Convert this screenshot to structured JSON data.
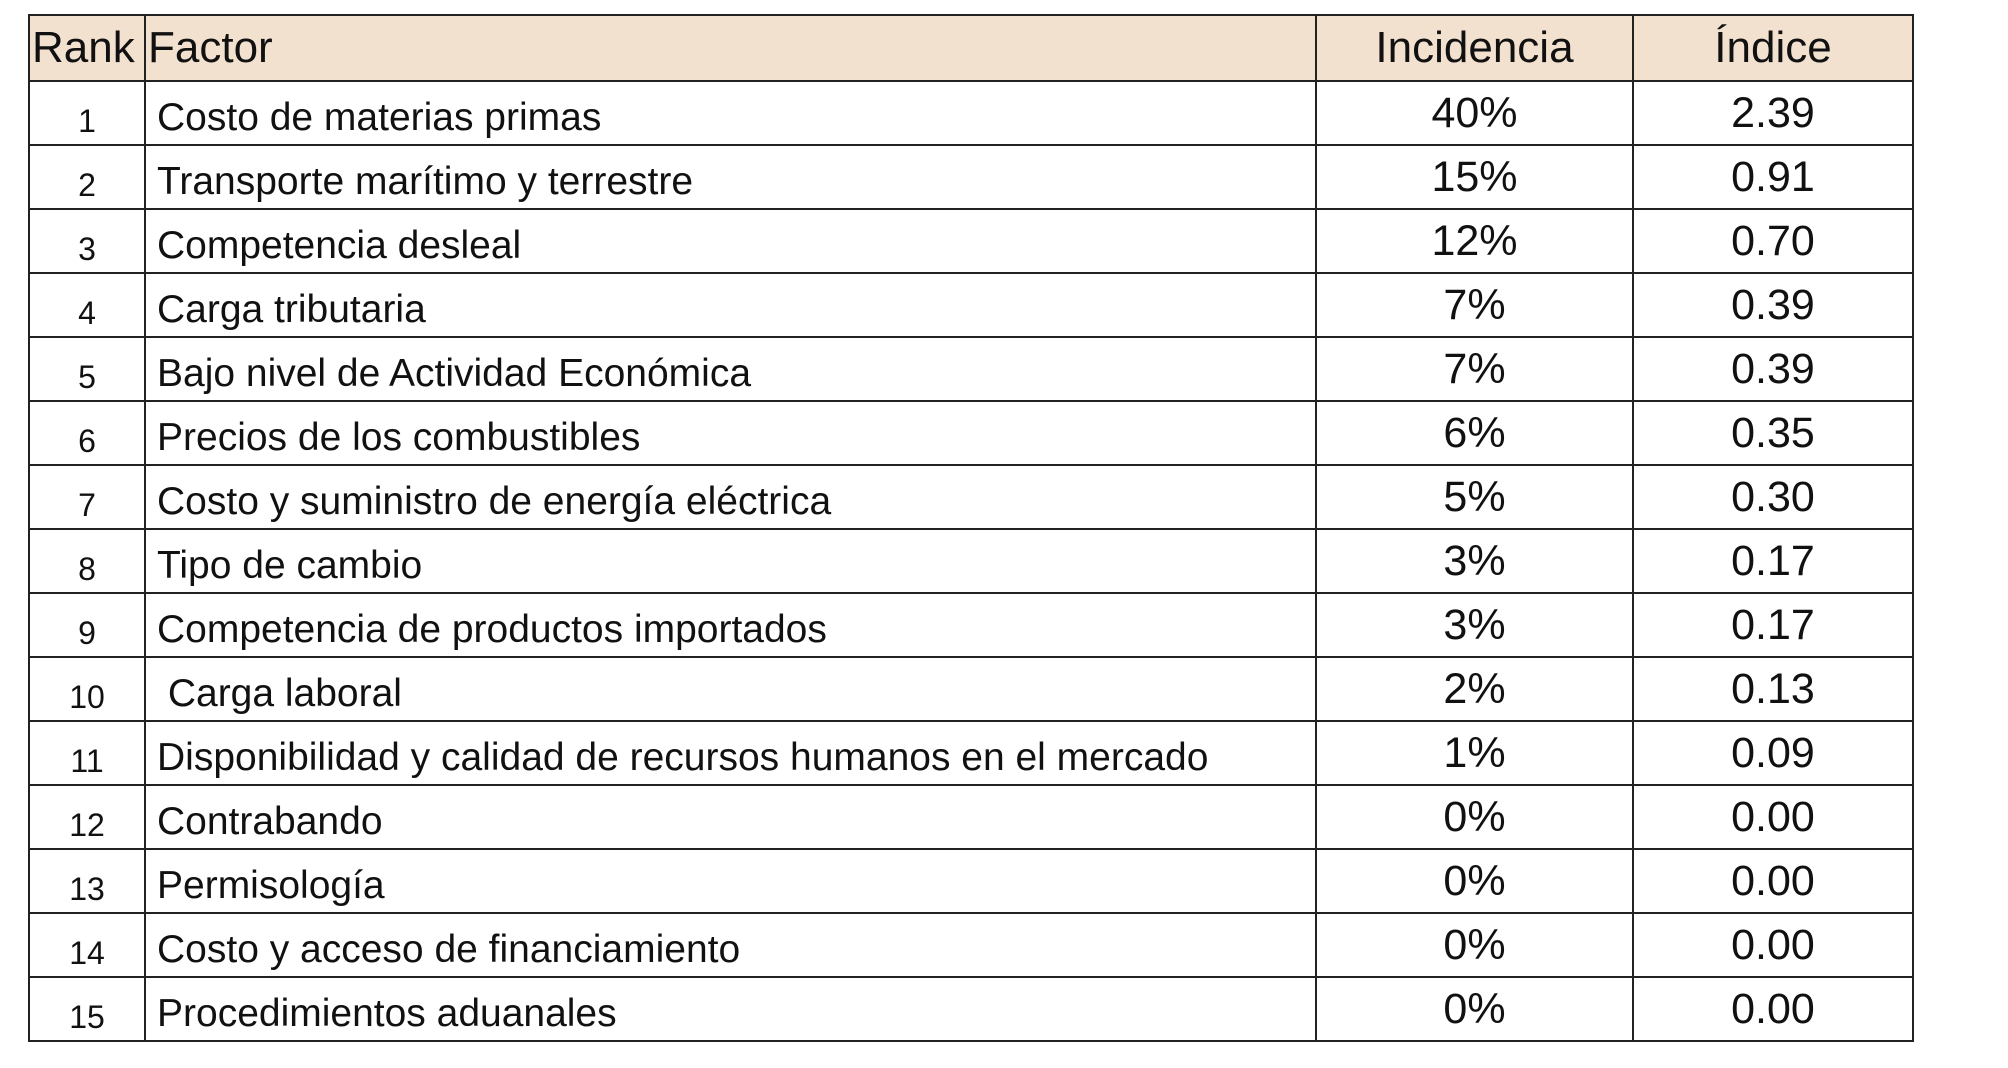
{
  "table": {
    "headers": {
      "rank": "Rank",
      "factor": "Factor",
      "incidencia": "Incidencia",
      "indice": "Índice"
    },
    "rows": [
      {
        "rank": "1",
        "factor": "Costo de materias primas",
        "incidencia": "40%",
        "indice": "2.39"
      },
      {
        "rank": "2",
        "factor": "Transporte marítimo y terrestre",
        "incidencia": "15%",
        "indice": "0.91"
      },
      {
        "rank": "3",
        "factor": "Competencia desleal",
        "incidencia": "12%",
        "indice": "0.70"
      },
      {
        "rank": "4",
        "factor": "Carga tributaria",
        "incidencia": "7%",
        "indice": "0.39"
      },
      {
        "rank": "5",
        "factor": "Bajo nivel de Actividad Económica",
        "incidencia": "7%",
        "indice": "0.39"
      },
      {
        "rank": "6",
        "factor": "Precios de los combustibles",
        "incidencia": "6%",
        "indice": "0.35"
      },
      {
        "rank": "7",
        "factor": "Costo y suministro de energía eléctrica",
        "incidencia": "5%",
        "indice": "0.30"
      },
      {
        "rank": "8",
        "factor": "Tipo de cambio",
        "incidencia": "3%",
        "indice": "0.17"
      },
      {
        "rank": "9",
        "factor": "Competencia de productos importados",
        "incidencia": "3%",
        "indice": "0.17"
      },
      {
        "rank": "10",
        "factor": " Carga laboral",
        "incidencia": "2%",
        "indice": "0.13"
      },
      {
        "rank": "11",
        "factor": "Disponibilidad y calidad de recursos humanos en el mercado",
        "incidencia": "1%",
        "indice": "0.09"
      },
      {
        "rank": "12",
        "factor": "Contrabando",
        "incidencia": "0%",
        "indice": "0.00"
      },
      {
        "rank": "13",
        "factor": "Permisología",
        "incidencia": "0%",
        "indice": "0.00"
      },
      {
        "rank": "14",
        "factor": "Costo y acceso de financiamiento",
        "incidencia": "0%",
        "indice": "0.00"
      },
      {
        "rank": "15",
        "factor": "Procedimientos aduanales",
        "incidencia": "0%",
        "indice": "0.00"
      }
    ]
  },
  "colors": {
    "header_background": "#f3e1cf",
    "border": "#222222"
  }
}
